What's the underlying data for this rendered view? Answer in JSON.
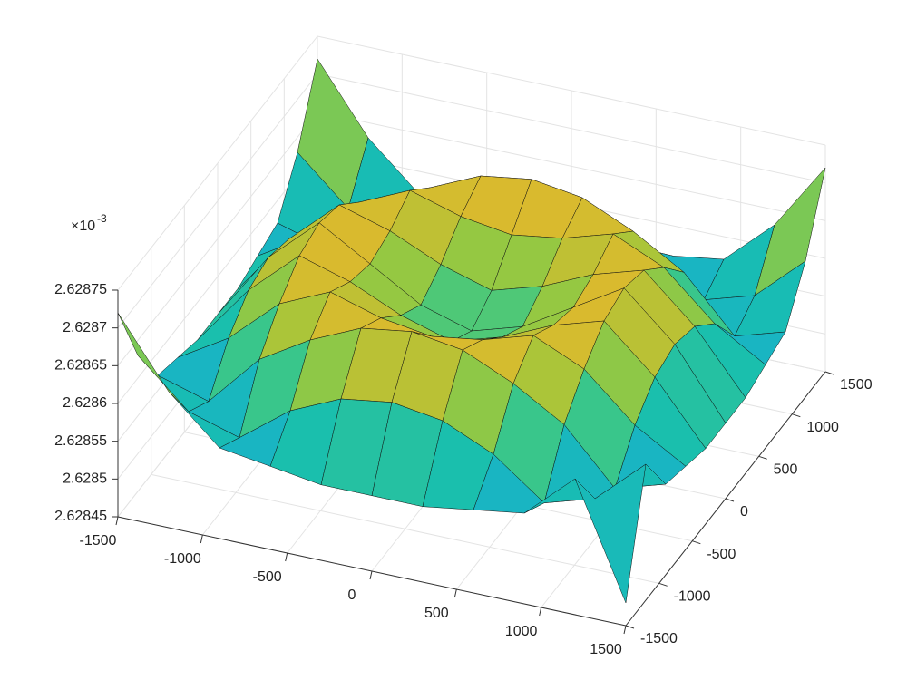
{
  "chart_data": {
    "type": "surface",
    "x": [
      -1500,
      -1200,
      -900,
      -600,
      -300,
      0,
      300,
      600,
      900,
      1200,
      1500
    ],
    "y": [
      -1500,
      -1200,
      -900,
      -600,
      -300,
      0,
      300,
      600,
      900,
      1200,
      1500
    ],
    "z": [
      [
        2.62872,
        2.62863,
        2.62857,
        2.62856,
        2.62855,
        2.62855,
        2.62855,
        2.62856,
        2.62857,
        2.62863,
        2.62848
      ],
      [
        2.62863,
        2.62857,
        2.62855,
        2.6286,
        2.62863,
        2.62864,
        2.62863,
        2.6286,
        2.62855,
        2.62857,
        2.62863
      ],
      [
        2.62857,
        2.62855,
        2.62862,
        2.62866,
        2.62869,
        2.6287,
        2.62869,
        2.62866,
        2.62862,
        2.62855,
        2.62857
      ],
      [
        2.62856,
        2.6286,
        2.62866,
        2.62869,
        2.62867,
        2.62866,
        2.62867,
        2.62869,
        2.62866,
        2.6286,
        2.62856
      ],
      [
        2.62855,
        2.62863,
        2.62869,
        2.62867,
        2.62864,
        2.62862,
        2.62864,
        2.62867,
        2.62869,
        2.62863,
        2.62855
      ],
      [
        2.62855,
        2.62864,
        2.6287,
        2.62866,
        2.62862,
        2.6286,
        2.62862,
        2.62866,
        2.6287,
        2.62864,
        2.62855
      ],
      [
        2.62855,
        2.62863,
        2.62869,
        2.62867,
        2.62864,
        2.62862,
        2.62864,
        2.62867,
        2.62869,
        2.62863,
        2.62855
      ],
      [
        2.62856,
        2.6286,
        2.62866,
        2.62869,
        2.62867,
        2.62866,
        2.62867,
        2.62869,
        2.62866,
        2.6286,
        2.62856
      ],
      [
        2.62857,
        2.62855,
        2.62862,
        2.62866,
        2.62869,
        2.6287,
        2.62869,
        2.62866,
        2.62862,
        2.62855,
        2.62857
      ],
      [
        2.62863,
        2.62857,
        2.62855,
        2.6286,
        2.62863,
        2.62864,
        2.62863,
        2.6286,
        2.62855,
        2.62857,
        2.62863
      ],
      [
        2.62872,
        2.62863,
        2.62857,
        2.62856,
        2.62855,
        2.62855,
        2.62855,
        2.62856,
        2.62857,
        2.62863,
        2.62872
      ]
    ],
    "xlim": [
      -1500,
      1500
    ],
    "ylim": [
      -1500,
      1500
    ],
    "zlim": [
      2.62845,
      2.62875
    ],
    "xticks": [
      -1500,
      -1000,
      -500,
      0,
      500,
      1000,
      1500
    ],
    "yticks": [
      -1500,
      -1000,
      -500,
      0,
      500,
      1000,
      1500
    ],
    "zticks": [
      2.62845,
      2.6285,
      2.62855,
      2.6286,
      2.62865,
      2.6287,
      2.62875
    ],
    "z_scale_label": "×10",
    "z_scale_exponent": "-3",
    "grid": true,
    "colormap": [
      "#3e26a8",
      "#4743f0",
      "#2d7ff9",
      "#1ba5dc",
      "#18bfb0",
      "#46c87d",
      "#9bc83d",
      "#e0b92c",
      "#fcd728",
      "#f9fb0e"
    ]
  }
}
